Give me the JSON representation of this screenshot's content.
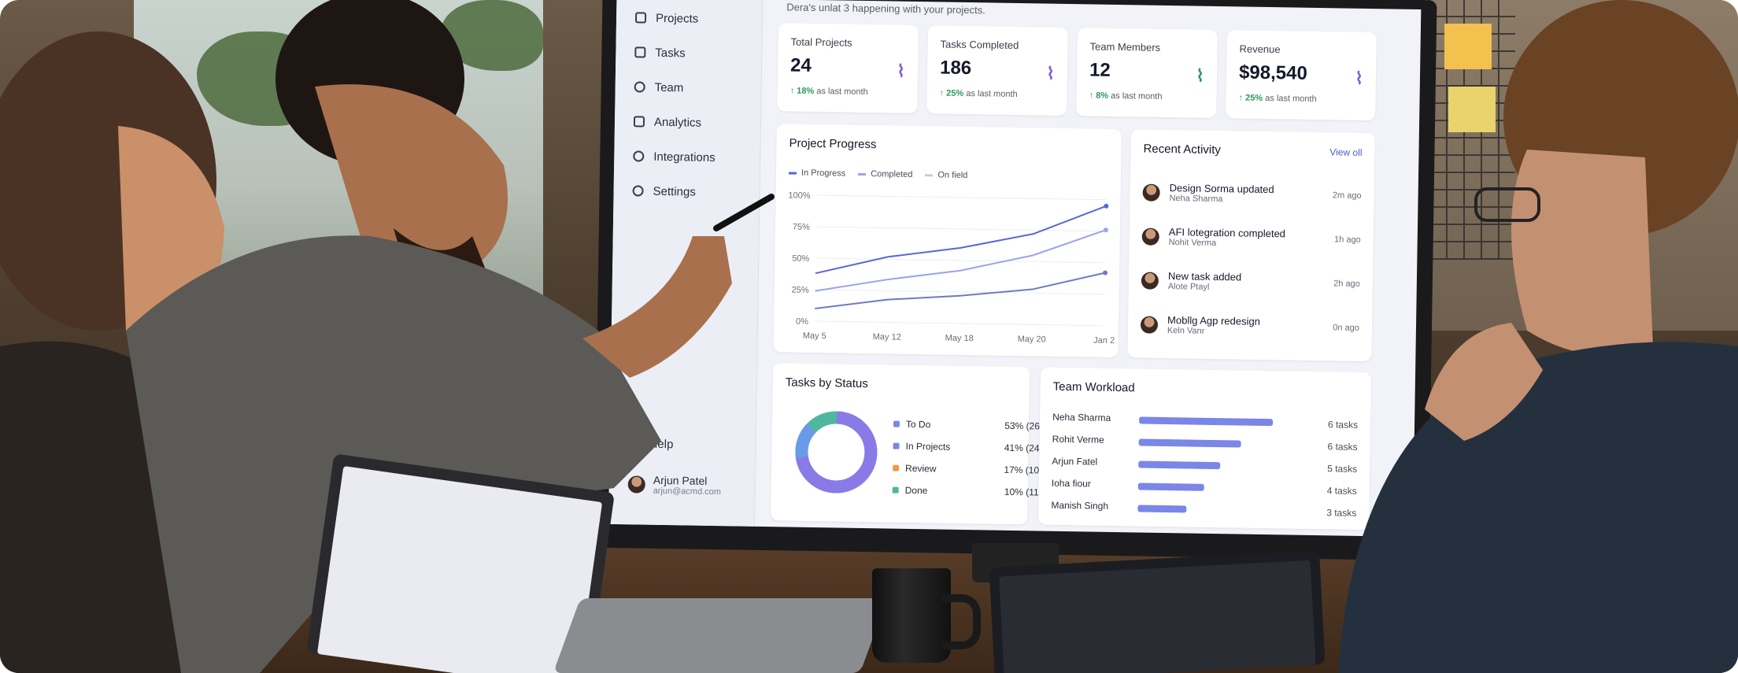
{
  "dashboard": {
    "subtitle": "Dera's unlat 3 happening with your projects.",
    "sidebar": {
      "items": [
        {
          "label": "Projects",
          "icon": "folder-icon"
        },
        {
          "label": "Tasks",
          "icon": "checkbox-icon"
        },
        {
          "label": "Team",
          "icon": "people-icon"
        },
        {
          "label": "Analytics",
          "icon": "bar-chart-icon"
        },
        {
          "label": "Integrations",
          "icon": "link-icon"
        },
        {
          "label": "Settings",
          "icon": "gear-icon"
        }
      ],
      "help": "Help",
      "user": {
        "name": "Arjun Patel",
        "email": "arjun@acmd.com"
      }
    },
    "stats": [
      {
        "label": "Total Projects",
        "value": "24",
        "delta": "18%",
        "delta_suffix": "as last month"
      },
      {
        "label": "Tasks Completed",
        "value": "186",
        "delta": "25%",
        "delta_suffix": "as last month"
      },
      {
        "label": "Team Members",
        "value": "12",
        "delta": "8%",
        "delta_suffix": "as last month"
      },
      {
        "label": "Revenue",
        "value": "$98,540",
        "delta": "25%",
        "delta_suffix": "as last month"
      }
    ],
    "project_progress": {
      "title": "Project Progress",
      "legend": [
        "In Progress",
        "Completed",
        "On field"
      ],
      "y_ticks": [
        "100%",
        "75%",
        "50%",
        "25%",
        "0%"
      ],
      "x_ticks": [
        "May 5",
        "May 12",
        "May 18",
        "May 20",
        "Jan 2"
      ]
    },
    "recent_activity": {
      "title": "Recent Activity",
      "view_all": "View oll",
      "items": [
        {
          "title": "Design Sorma updated",
          "user": "Neha Sharma",
          "time": "2m ago"
        },
        {
          "title": "AFI lotegration completed",
          "user": "Nohit Verma",
          "time": "1h ago"
        },
        {
          "title": "New task added",
          "user": "Alote Ptayl",
          "time": "2h ago"
        },
        {
          "title": "Mobllg Agp redesign",
          "user": "Keln Vanr",
          "time": "0n ago"
        }
      ]
    },
    "tasks_by_status": {
      "title": "Tasks by Status",
      "items": [
        {
          "label": "To Do",
          "pct": "53% (26)",
          "color": "#7b86e8"
        },
        {
          "label": "In Projects",
          "pct": "41% (24)",
          "color": "#7b86e8"
        },
        {
          "label": "Review",
          "pct": "17% (10)",
          "color": "#f2994a"
        },
        {
          "label": "Done",
          "pct": "10% (11)",
          "color": "#4fb6a0"
        }
      ]
    },
    "team_workload": {
      "title": "Team Workload",
      "items": [
        {
          "name": "Neha Sharma",
          "tasks": "6 tasks"
        },
        {
          "name": "Rohit Verme",
          "tasks": "6 tasks"
        },
        {
          "name": "Arjun Fatel",
          "tasks": "5 tasks"
        },
        {
          "name": "Ioha fiour",
          "tasks": "4 tasks"
        },
        {
          "name": "Manish Singh",
          "tasks": "3 tasks"
        }
      ]
    }
  },
  "chart_data": {
    "type": "line",
    "x": [
      "May 5",
      "May 12",
      "May 18",
      "May 20",
      "Jan 2"
    ],
    "ylim": [
      0,
      100
    ],
    "series": [
      {
        "name": "In Progress",
        "values": [
          38,
          52,
          60,
          72,
          95
        ]
      },
      {
        "name": "Completed",
        "values": [
          24,
          34,
          42,
          55,
          76
        ]
      },
      {
        "name": "On field",
        "values": [
          10,
          18,
          22,
          28,
          42
        ]
      }
    ]
  }
}
